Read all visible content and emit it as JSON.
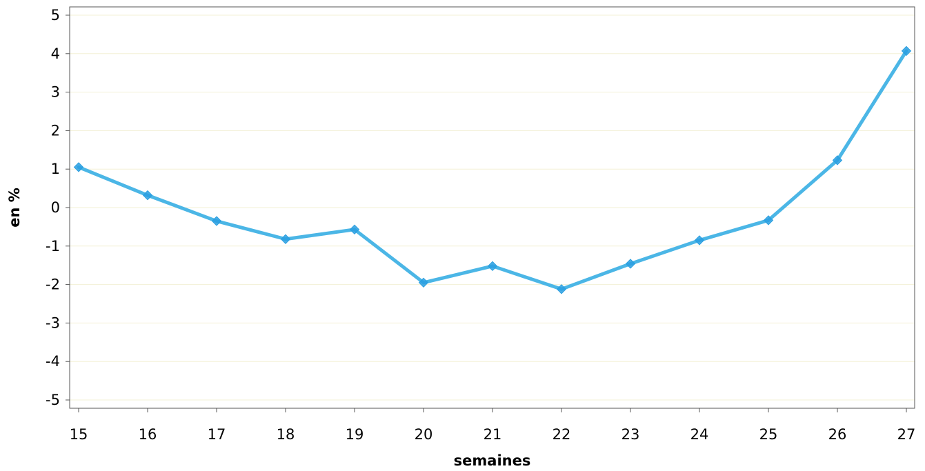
{
  "chart_data": {
    "type": "line",
    "title": "",
    "xlabel": "semaines",
    "ylabel": "en %",
    "x": [
      15,
      16,
      17,
      18,
      19,
      20,
      21,
      22,
      23,
      24,
      25,
      26,
      27
    ],
    "series": [
      {
        "values": [
          1.05,
          0.32,
          -0.35,
          -0.82,
          -0.57,
          -1.95,
          -1.52,
          -2.12,
          -1.46,
          -0.85,
          -0.33,
          1.23,
          4.07
        ],
        "color": "#4bb6e6",
        "marker": "diamond"
      }
    ],
    "xlim": [
      15,
      27
    ],
    "ylim": [
      -5,
      5
    ],
    "yticks": [
      5,
      4,
      3,
      2,
      1,
      0,
      -1,
      -2,
      -3,
      -4,
      -5
    ],
    "xticks": [
      15,
      16,
      17,
      18,
      19,
      20,
      21,
      22,
      23,
      24,
      25,
      26,
      27
    ],
    "grid": true,
    "gridColor": "#f3f0d6",
    "legend": "none"
  }
}
